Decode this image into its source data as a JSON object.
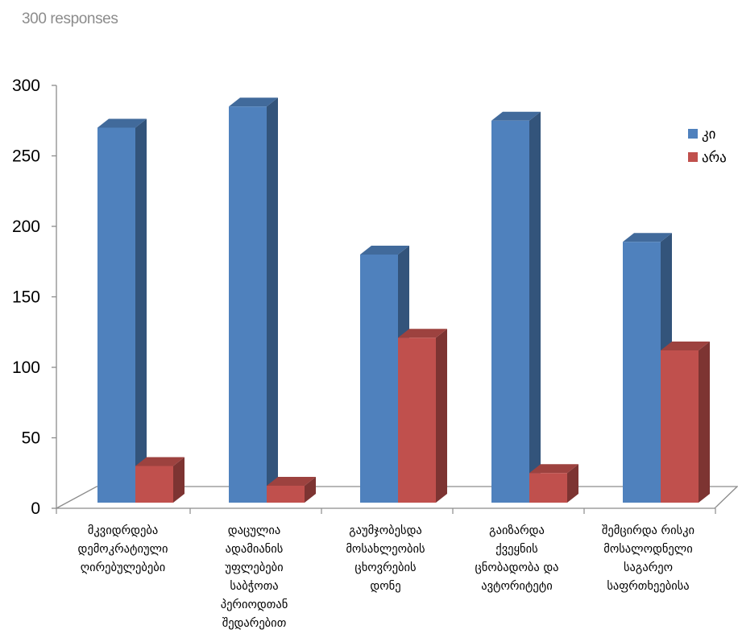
{
  "header": {
    "responses": "300 responses"
  },
  "chart_data": {
    "type": "bar",
    "title": "",
    "xlabel": "",
    "ylabel": "",
    "ylim": [
      0,
      300
    ],
    "yticks": [
      0,
      50,
      100,
      150,
      200,
      250,
      300
    ],
    "legend_position": "right",
    "grid": false,
    "categories": [
      [
        "მკვიდრდება",
        "დემოკრატიული",
        "ღირებულებები"
      ],
      [
        "დაცულია",
        "ადამიანის",
        "უფლებები",
        "საბჭოთა",
        "პერიოდთან",
        "შედარებით"
      ],
      [
        "გაუმჯობესდა",
        "მოსახლეობის",
        "ცხოვრების",
        "დონე"
      ],
      [
        "გაიზარდა",
        "ქვეყნის",
        "ცნობადობა და",
        "ავტორიტეტი"
      ],
      [
        "შემცირდა რისკი",
        "მოსალოდნელი",
        "საგარეო",
        "საფრთხეებისა"
      ]
    ],
    "series": [
      {
        "name": "კი",
        "color": "#4f81bd",
        "values": [
          266,
          281,
          176,
          271,
          185
        ]
      },
      {
        "name": "არა",
        "color": "#c0504d",
        "values": [
          26,
          12,
          117,
          21,
          108
        ]
      }
    ]
  }
}
